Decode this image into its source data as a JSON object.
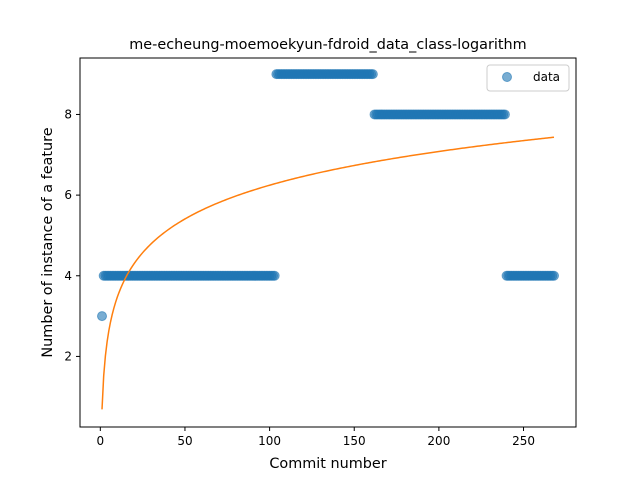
{
  "chart_data": {
    "type": "scatter",
    "title": "me-echeung-moemoekyun-fdroid_data_class-logarithm",
    "xlabel": "Commit number",
    "ylabel": "Number of instance of a feature",
    "xlim": [
      -12,
      281
    ],
    "ylim": [
      0.25,
      9.4
    ],
    "xticks": [
      0,
      50,
      100,
      150,
      200,
      250
    ],
    "yticks": [
      2,
      4,
      6,
      8
    ],
    "grid": false,
    "legend_position": "top-right",
    "series": [
      {
        "name": "data",
        "kind": "scatter",
        "color": "#1f77b4",
        "runs": [
          {
            "x_start": 1,
            "x_end": 1,
            "y": 3
          },
          {
            "x_start": 2,
            "x_end": 103,
            "y": 4
          },
          {
            "x_start": 104,
            "x_end": 161,
            "y": 9
          },
          {
            "x_start": 162,
            "x_end": 239,
            "y": 8
          },
          {
            "x_start": 240,
            "x_end": 268,
            "y": 4
          }
        ]
      },
      {
        "kind": "line",
        "color": "#ff7f0e",
        "model": "logarithmic",
        "a": 0.687,
        "b": 1.207,
        "x_range": [
          1,
          268
        ]
      }
    ]
  }
}
